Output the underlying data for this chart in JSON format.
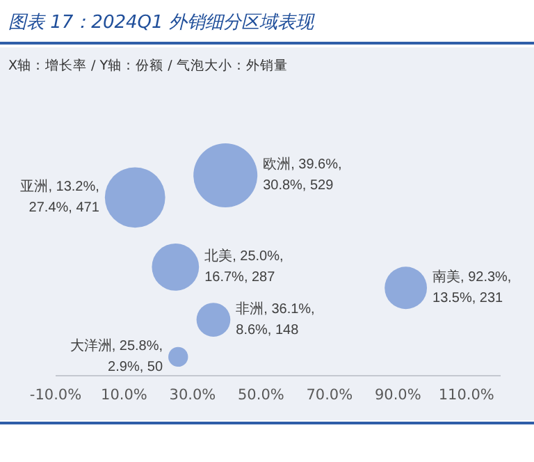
{
  "chart_data": {
    "type": "bubble",
    "title": "图表 17：2024Q1 外销细分区域表现",
    "subtitle": "X轴：增长率 / Y轴：份额 / 气泡大小：外销量",
    "series": [
      {
        "color": "#8faadc",
        "x": [
          13.2,
          39.6,
          25.0,
          36.1,
          92.3,
          25.8
        ],
        "values": [
          27.4,
          30.8,
          16.7,
          8.6,
          13.5,
          2.9
        ],
        "sizes": [
          0.89,
          1,
          0.543,
          0.28,
          0.437,
          0.095
        ],
        "value_labels": [
          "亚洲, 13.2%,\n27.4%, 471",
          "欧洲, 39.6%,\n30.8%, 529",
          "北美, 25.0%,\n16.7%, 287",
          "非洲, 36.1%,\n8.6%, 148",
          "南美, 92.3%,\n13.5%, 231",
          "大洋洲, 25.8%,\n2.9%, 50"
        ]
      }
    ],
    "xlim": [
      -10,
      120
    ],
    "xticks": [
      {
        "value": -10,
        "label": "-10.0%"
      },
      {
        "value": 10,
        "label": "10.0%"
      },
      {
        "value": 30,
        "label": "30.0%"
      },
      {
        "value": 50,
        "label": "50.0%"
      },
      {
        "value": 70,
        "label": "70.0%"
      },
      {
        "value": 90,
        "label": "90.0%"
      },
      {
        "value": 110,
        "label": "110.0%"
      }
    ],
    "tick_labels": "x",
    "marker": "circle"
  }
}
